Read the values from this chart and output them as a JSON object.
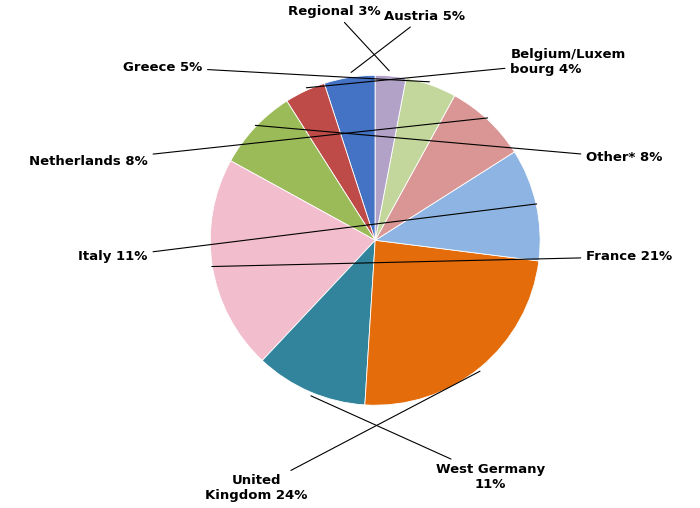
{
  "labels": [
    "Austria",
    "Belgium/Luxembourg",
    "Other*",
    "France",
    "West Germany",
    "United Kingdom",
    "Italy",
    "Netherlands",
    "Greece",
    "Regional"
  ],
  "values": [
    5,
    4,
    8,
    21,
    11,
    24,
    11,
    8,
    5,
    3
  ],
  "colors": [
    "#4472C4",
    "#BE4B48",
    "#9BBB59",
    "#F2BDCD",
    "#31849B",
    "#E46C0A",
    "#8DB4E2",
    "#D99694",
    "#C3D69B",
    "#B2A2C7"
  ],
  "label_texts": [
    "Austria 5%",
    "Belgium/Luxem\nbourg 4%",
    "Other* 8%",
    "France 21%",
    "West Germany\n11%",
    "United\nKingdom 24%",
    "Italy 11%",
    "Netherlands 8%",
    "Greece 5%",
    "Regional 3%"
  ],
  "startangle": 90,
  "background_color": "#FFFFFF",
  "label_positions": {
    "Austria": [
      0.3,
      1.32,
      "center",
      "bottom"
    ],
    "Belgium/Luxembourg": [
      0.82,
      1.08,
      "left",
      "center"
    ],
    "Other*": [
      1.28,
      0.5,
      "left",
      "center"
    ],
    "France": [
      1.28,
      -0.1,
      "left",
      "center"
    ],
    "West Germany": [
      0.7,
      -1.35,
      "center",
      "top"
    ],
    "United Kingdom": [
      -0.72,
      -1.42,
      "center",
      "top"
    ],
    "Italy": [
      -1.38,
      -0.1,
      "right",
      "center"
    ],
    "Netherlands": [
      -1.38,
      0.48,
      "right",
      "center"
    ],
    "Greece": [
      -1.05,
      1.05,
      "right",
      "center"
    ],
    "Regional": [
      -0.25,
      1.35,
      "center",
      "bottom"
    ]
  }
}
